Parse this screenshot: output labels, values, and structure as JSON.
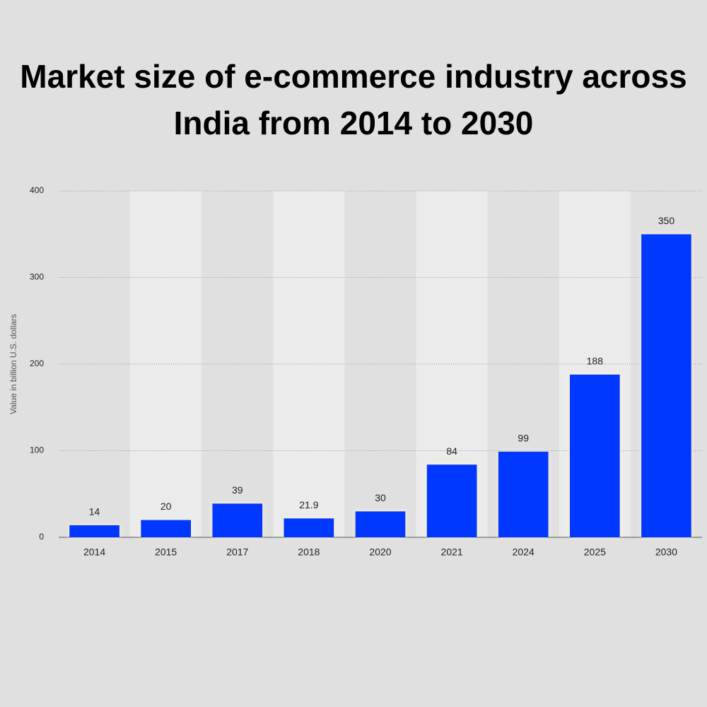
{
  "chart_data": {
    "type": "bar",
    "title": [
      "Market size of e-commerce industry across",
      "India from 2014 to 2030"
    ],
    "ylabel": "Value in billion U.S. dollars",
    "categories": [
      "2014",
      "2015",
      "2017",
      "2018",
      "2020",
      "2021",
      "2024",
      "2025",
      "2030"
    ],
    "values": [
      14,
      20,
      39,
      21.9,
      30,
      84,
      99,
      188,
      350
    ],
    "color": "#0037ff",
    "ylim": [
      0,
      400
    ],
    "yticks": [
      0,
      100,
      200,
      300,
      400
    ],
    "grid": true
  }
}
